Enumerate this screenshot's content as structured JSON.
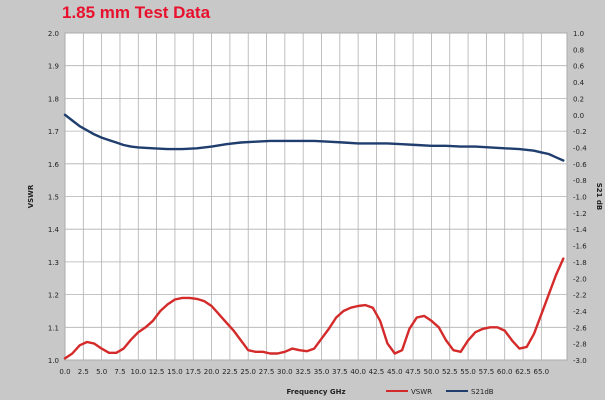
{
  "chart_data": {
    "type": "line",
    "title": "1.85 mm Test Data",
    "xlabel": "Frequency GHz",
    "ylabel": "VSWR",
    "y2label": "S21 dB",
    "xlim": [
      0,
      68.5
    ],
    "ylim": [
      1.0,
      2.0
    ],
    "y2lim": [
      -3.0,
      1.0
    ],
    "x_ticks": [
      "0.0",
      "2.5",
      "5.0",
      "7.5",
      "10.0",
      "12.5",
      "15.0",
      "17.5",
      "20.0",
      "22.5",
      "25.0",
      "27.5",
      "30.0",
      "32.5",
      "35.0",
      "37.5",
      "40.0",
      "42.5",
      "45.0",
      "47.5",
      "50.0",
      "52.5",
      "55.0",
      "57.5",
      "60.0",
      "62.5",
      "65.0"
    ],
    "y_ticks": [
      "1.0",
      "1.1",
      "1.2",
      "1.3",
      "1.4",
      "1.5",
      "1.6",
      "1.7",
      "1.8",
      "1.9",
      "2.0"
    ],
    "y2_ticks": [
      "-3.0",
      "-2.8",
      "-2.6",
      "-2.4",
      "-2.2",
      "-2.0",
      "-1.8",
      "-1.6",
      "-1.4",
      "-1.2",
      "-1.0",
      "-0.8",
      "-0.6",
      "-0.4",
      "-0.2",
      "0.0",
      "0.2",
      "0.4",
      "0.6",
      "0.8",
      "1.0"
    ],
    "grid": true,
    "legend_position": "bottom-right",
    "series": [
      {
        "name": "VSWR",
        "axis": "left",
        "color": "#d42a2a",
        "x": [
          0,
          1,
          2,
          3,
          4,
          5,
          6,
          7,
          8,
          9,
          10,
          11,
          12,
          13,
          14,
          15,
          16,
          17,
          18,
          19,
          20,
          21,
          22,
          23,
          24,
          25,
          26,
          27,
          28,
          29,
          30,
          31,
          32,
          33,
          34,
          35,
          36,
          37,
          38,
          39,
          40,
          41,
          42,
          43,
          44,
          45,
          46,
          47,
          48,
          49,
          50,
          51,
          52,
          53,
          54,
          55,
          56,
          57,
          58,
          59,
          60,
          61,
          62,
          63,
          64,
          65,
          66,
          67,
          68
        ],
        "values": [
          1.005,
          1.02,
          1.045,
          1.055,
          1.05,
          1.035,
          1.022,
          1.022,
          1.035,
          1.062,
          1.085,
          1.1,
          1.12,
          1.15,
          1.17,
          1.185,
          1.19,
          1.19,
          1.187,
          1.18,
          1.165,
          1.14,
          1.115,
          1.09,
          1.06,
          1.03,
          1.025,
          1.025,
          1.02,
          1.02,
          1.025,
          1.035,
          1.03,
          1.027,
          1.035,
          1.065,
          1.095,
          1.13,
          1.15,
          1.16,
          1.165,
          1.168,
          1.16,
          1.12,
          1.05,
          1.02,
          1.03,
          1.095,
          1.13,
          1.135,
          1.12,
          1.1,
          1.06,
          1.03,
          1.025,
          1.06,
          1.085,
          1.095,
          1.1,
          1.1,
          1.09,
          1.06,
          1.035,
          1.04,
          1.08,
          1.14,
          1.2,
          1.26,
          1.31
        ]
      },
      {
        "name": "S21dB",
        "axis": "right",
        "color": "#1f3d6d",
        "x": [
          0,
          1,
          2,
          3,
          4,
          5,
          6,
          7,
          8,
          9,
          10,
          12,
          14,
          16,
          18,
          20,
          22,
          24,
          26,
          28,
          30,
          32,
          34,
          36,
          38,
          40,
          42,
          44,
          46,
          48,
          50,
          52,
          54,
          56,
          58,
          60,
          62,
          64,
          65,
          66,
          67,
          68
        ],
        "values": [
          0.0,
          -0.07,
          -0.14,
          -0.19,
          -0.24,
          -0.28,
          -0.31,
          -0.34,
          -0.37,
          -0.39,
          -0.4,
          -0.41,
          -0.42,
          -0.42,
          -0.41,
          -0.39,
          -0.36,
          -0.34,
          -0.33,
          -0.32,
          -0.32,
          -0.32,
          -0.32,
          -0.33,
          -0.34,
          -0.35,
          -0.35,
          -0.35,
          -0.36,
          -0.37,
          -0.38,
          -0.38,
          -0.39,
          -0.39,
          -0.4,
          -0.41,
          -0.42,
          -0.44,
          -0.46,
          -0.48,
          -0.52,
          -0.56
        ]
      }
    ]
  }
}
